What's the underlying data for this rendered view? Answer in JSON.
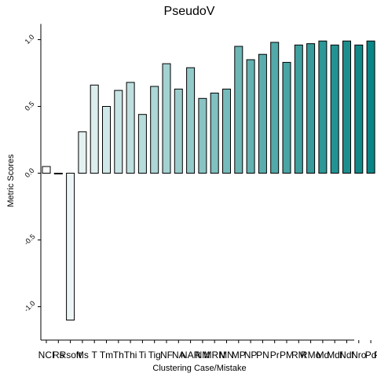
{
  "chart_data": {
    "type": "bar",
    "title": "PseudoV",
    "xlabel": "Clustering Case/Mistake",
    "ylabel": "Metric Scores",
    "ylim": [
      -1.25,
      1.1
    ],
    "yticks": [
      "1.0",
      "0.5",
      "0.0",
      "-0.5",
      "-1.0"
    ],
    "categories": [
      "NCI",
      "Rs",
      "Rsoft",
      "Ms",
      "T",
      "Tm",
      "Th",
      "Thi",
      "Ti",
      "Tig",
      "NF",
      "NA",
      "NAR",
      "NM",
      "MRN",
      "MN",
      "MP",
      "NP",
      "PN",
      "Pr",
      "PM",
      "RM",
      "RMo",
      "Md",
      "Mdf",
      "Ndf",
      "Nro",
      "Pd",
      "PdS"
    ],
    "values": [
      0.05,
      0.0,
      -1.1,
      0.31,
      0.66,
      0.5,
      0.62,
      0.68,
      0.44,
      0.65,
      0.82,
      0.63,
      0.79,
      0.56,
      0.6,
      0.63,
      0.95,
      0.85,
      0.89,
      0.98,
      0.83,
      0.96,
      0.97,
      0.99,
      0.96,
      0.99,
      0.96,
      0.99,
      1.0
    ],
    "colors": {
      "low": "#ffffff",
      "high": "#008080",
      "stroke": "#000000"
    },
    "grid": false,
    "legend": "none"
  }
}
